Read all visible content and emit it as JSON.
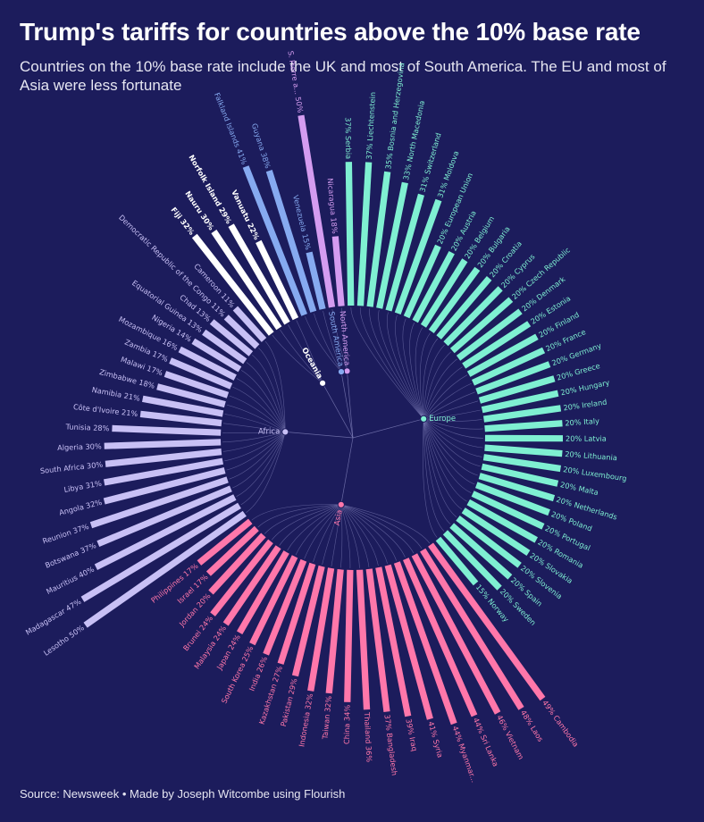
{
  "title": "Trump's tariffs for countries above the 10% base rate",
  "subtitle": "Countries on the 10% base rate include the UK and most of South America. The EU and most of Asia were less fortunate",
  "source": "Source: Newsweek • Made by Joseph Witcombe using Flourish",
  "colors": {
    "background": "#1c1c5c",
    "Europe": "#7ff0d2",
    "Asia": "#ff77aa",
    "Africa": "#c8c0f5",
    "Oceania": "#ffffff",
    "South America": "#86aaf0",
    "North America": "#d49cf0"
  },
  "chart_data": {
    "type": "radial-bar",
    "regions": [
      "North America",
      "Europe",
      "Asia",
      "Africa",
      "Oceania",
      "South America"
    ],
    "items": [
      {
        "name": "Nicaragua",
        "label": "Nicaragua 18%",
        "value": 18,
        "region": "North America"
      },
      {
        "name": "Serbia",
        "label": "37% Serbia",
        "value": 37,
        "region": "Europe"
      },
      {
        "name": "Liechtenstein",
        "label": "37% Liechtenstein",
        "value": 37,
        "region": "Europe"
      },
      {
        "name": "Bosnia and Herzegovina",
        "label": "35% Bosnia and Herzegovina",
        "value": 35,
        "region": "Europe"
      },
      {
        "name": "North Macedonia",
        "label": "33% North Macedonia",
        "value": 33,
        "region": "Europe"
      },
      {
        "name": "Switzerland",
        "label": "31% Switzerland",
        "value": 31,
        "region": "Europe"
      },
      {
        "name": "Moldova",
        "label": "31% Moldova",
        "value": 31,
        "region": "Europe"
      },
      {
        "name": "European Union",
        "label": "20% European Union",
        "value": 20,
        "region": "Europe"
      },
      {
        "name": "Austria",
        "label": "20% Austria",
        "value": 20,
        "region": "Europe"
      },
      {
        "name": "Belgium",
        "label": "20% Belgium",
        "value": 20,
        "region": "Europe"
      },
      {
        "name": "Bulgaria",
        "label": "20% Bulgaria",
        "value": 20,
        "region": "Europe"
      },
      {
        "name": "Croatia",
        "label": "20% Croatia",
        "value": 20,
        "region": "Europe"
      },
      {
        "name": "Cyprus",
        "label": "20% Cyprus",
        "value": 20,
        "region": "Europe"
      },
      {
        "name": "Czech Republic",
        "label": "20% Czech Republic",
        "value": 20,
        "region": "Europe"
      },
      {
        "name": "Denmark",
        "label": "20% Denmark",
        "value": 20,
        "region": "Europe"
      },
      {
        "name": "Estonia",
        "label": "20% Estonia",
        "value": 20,
        "region": "Europe"
      },
      {
        "name": "Finland",
        "label": "20% Finland",
        "value": 20,
        "region": "Europe"
      },
      {
        "name": "France",
        "label": "20% France",
        "value": 20,
        "region": "Europe"
      },
      {
        "name": "Germany",
        "label": "20% Germany",
        "value": 20,
        "region": "Europe"
      },
      {
        "name": "Greece",
        "label": "20% Greece",
        "value": 20,
        "region": "Europe"
      },
      {
        "name": "Hungary",
        "label": "20% Hungary",
        "value": 20,
        "region": "Europe"
      },
      {
        "name": "Ireland",
        "label": "20% Ireland",
        "value": 20,
        "region": "Europe"
      },
      {
        "name": "Italy",
        "label": "20% Italy",
        "value": 20,
        "region": "Europe"
      },
      {
        "name": "Latvia",
        "label": "20% Latvia",
        "value": 20,
        "region": "Europe"
      },
      {
        "name": "Lithuania",
        "label": "20% Lithuania",
        "value": 20,
        "region": "Europe"
      },
      {
        "name": "Luxembourg",
        "label": "20% Luxembourg",
        "value": 20,
        "region": "Europe"
      },
      {
        "name": "Malta",
        "label": "20% Malta",
        "value": 20,
        "region": "Europe"
      },
      {
        "name": "Netherlands",
        "label": "20% Netherlands",
        "value": 20,
        "region": "Europe"
      },
      {
        "name": "Poland",
        "label": "20% Poland",
        "value": 20,
        "region": "Europe"
      },
      {
        "name": "Portugal",
        "label": "20% Portugal",
        "value": 20,
        "region": "Europe"
      },
      {
        "name": "Romania",
        "label": "20% Romania",
        "value": 20,
        "region": "Europe"
      },
      {
        "name": "Slovakia",
        "label": "20% Slovakia",
        "value": 20,
        "region": "Europe"
      },
      {
        "name": "Slovenia",
        "label": "20% Slovenia",
        "value": 20,
        "region": "Europe"
      },
      {
        "name": "Spain",
        "label": "20% Spain",
        "value": 20,
        "region": "Europe"
      },
      {
        "name": "Sweden",
        "label": "20% Sweden",
        "value": 20,
        "region": "Europe"
      },
      {
        "name": "Norway",
        "label": "15% Norway",
        "value": 15,
        "region": "Europe"
      },
      {
        "name": "Cambodia",
        "label": "49% Cambodia",
        "value": 49,
        "region": "Asia"
      },
      {
        "name": "Laos",
        "label": "48% Laos",
        "value": 48,
        "region": "Asia"
      },
      {
        "name": "Vietnam",
        "label": "46% Vietnam",
        "value": 46,
        "region": "Asia"
      },
      {
        "name": "Sri Lanka",
        "label": "44% Sri Lanka",
        "value": 44,
        "region": "Asia"
      },
      {
        "name": "Myanmar",
        "label": "44% Myanmar...",
        "value": 44,
        "region": "Asia"
      },
      {
        "name": "Syria",
        "label": "41% Syria",
        "value": 41,
        "region": "Asia"
      },
      {
        "name": "Iraq",
        "label": "39% Iraq",
        "value": 39,
        "region": "Asia"
      },
      {
        "name": "Bangladesh",
        "label": "37% Bangladesh",
        "value": 37,
        "region": "Asia"
      },
      {
        "name": "Thailand",
        "label": "Thailand 36%",
        "value": 36,
        "region": "Asia"
      },
      {
        "name": "China",
        "label": "China 34%",
        "value": 34,
        "region": "Asia"
      },
      {
        "name": "Taiwan",
        "label": "Taiwan 32%",
        "value": 32,
        "region": "Asia"
      },
      {
        "name": "Indonesia",
        "label": "Indonesia 32%",
        "value": 32,
        "region": "Asia"
      },
      {
        "name": "Pakistan",
        "label": "Pakistan 29%",
        "value": 29,
        "region": "Asia"
      },
      {
        "name": "Kazakhstan",
        "label": "Kazakhstan 27%",
        "value": 27,
        "region": "Asia"
      },
      {
        "name": "India",
        "label": "India 26%",
        "value": 26,
        "region": "Asia"
      },
      {
        "name": "South Korea",
        "label": "South Korea 25%",
        "value": 25,
        "region": "Asia"
      },
      {
        "name": "Japan",
        "label": "Japan 24%",
        "value": 24,
        "region": "Asia"
      },
      {
        "name": "Malaysia",
        "label": "Malaysia 24%",
        "value": 24,
        "region": "Asia"
      },
      {
        "name": "Brunei",
        "label": "Brunei 24%",
        "value": 24,
        "region": "Asia"
      },
      {
        "name": "Jordan",
        "label": "Jordan 20%",
        "value": 20,
        "region": "Asia"
      },
      {
        "name": "Israel",
        "label": "Israel 17%",
        "value": 17,
        "region": "Asia"
      },
      {
        "name": "Philippines",
        "label": "Philippines 17%",
        "value": 17,
        "region": "Asia"
      },
      {
        "name": "Lesotho",
        "label": "Lesotho 50%",
        "value": 50,
        "region": "Africa"
      },
      {
        "name": "Madagascar",
        "label": "Madagascar 47%",
        "value": 47,
        "region": "Africa"
      },
      {
        "name": "Mauritius",
        "label": "Mauritius 40%",
        "value": 40,
        "region": "Africa"
      },
      {
        "name": "Botswana",
        "label": "Botswana 37%",
        "value": 37,
        "region": "Africa"
      },
      {
        "name": "Reunion",
        "label": "Reunion 37%",
        "value": 37,
        "region": "Africa"
      },
      {
        "name": "Angola",
        "label": "Angola 32%",
        "value": 32,
        "region": "Africa"
      },
      {
        "name": "Libya",
        "label": "Libya 31%",
        "value": 31,
        "region": "Africa"
      },
      {
        "name": "South Africa",
        "label": "South Africa 30%",
        "value": 30,
        "region": "Africa"
      },
      {
        "name": "Algeria",
        "label": "Algeria 30%",
        "value": 30,
        "region": "Africa"
      },
      {
        "name": "Tunisia",
        "label": "Tunisia 28%",
        "value": 28,
        "region": "Africa"
      },
      {
        "name": "Cote d'Ivoire",
        "label": "Côte d'Ivoire 21%",
        "value": 21,
        "region": "Africa"
      },
      {
        "name": "Namibia",
        "label": "Namibia 21%",
        "value": 21,
        "region": "Africa"
      },
      {
        "name": "Zimbabwe",
        "label": "Zimbabwe 18%",
        "value": 18,
        "region": "Africa"
      },
      {
        "name": "Malawi",
        "label": "Malawi 17%",
        "value": 17,
        "region": "Africa"
      },
      {
        "name": "Zambia",
        "label": "Zambia 17%",
        "value": 17,
        "region": "Africa"
      },
      {
        "name": "Mozambique",
        "label": "Mozambique 16%",
        "value": 16,
        "region": "Africa"
      },
      {
        "name": "Nigeria",
        "label": "Nigeria 14%",
        "value": 14,
        "region": "Africa"
      },
      {
        "name": "Equatorial Guinea",
        "label": "Equatorial Guinea 13%",
        "value": 13,
        "region": "Africa"
      },
      {
        "name": "Chad",
        "label": "Chad 13%",
        "value": 13,
        "region": "Africa"
      },
      {
        "name": "Democratic Republic of the Congo",
        "label": "Democratic Republic of the Congo 11%",
        "value": 11,
        "region": "Africa"
      },
      {
        "name": "Cameroon",
        "label": "Cameroon 11%",
        "value": 11,
        "region": "Africa"
      },
      {
        "name": "Fiji",
        "label": "Fiji 32%",
        "value": 32,
        "region": "Oceania"
      },
      {
        "name": "Nauru",
        "label": "Nauru 30%",
        "value": 30,
        "region": "Oceania"
      },
      {
        "name": "Norfolk Island",
        "label": "Norfolk Island 29%",
        "value": 29,
        "region": "Oceania"
      },
      {
        "name": "Vanuatu",
        "label": "Vanuatu 22%",
        "value": 22,
        "region": "Oceania"
      },
      {
        "name": "Falkland Islands",
        "label": "Falkland Islands 41%",
        "value": 41,
        "region": "South America"
      },
      {
        "name": "Guyana",
        "label": "Guyana 38%",
        "value": 38,
        "region": "South America"
      },
      {
        "name": "Venezuela",
        "label": "Venezuela 15%",
        "value": 15,
        "region": "South America"
      },
      {
        "name": "S. Pierre and Miquelon",
        "label": "S. Pierre a... 50%",
        "value": 50,
        "region": "North America"
      }
    ]
  }
}
